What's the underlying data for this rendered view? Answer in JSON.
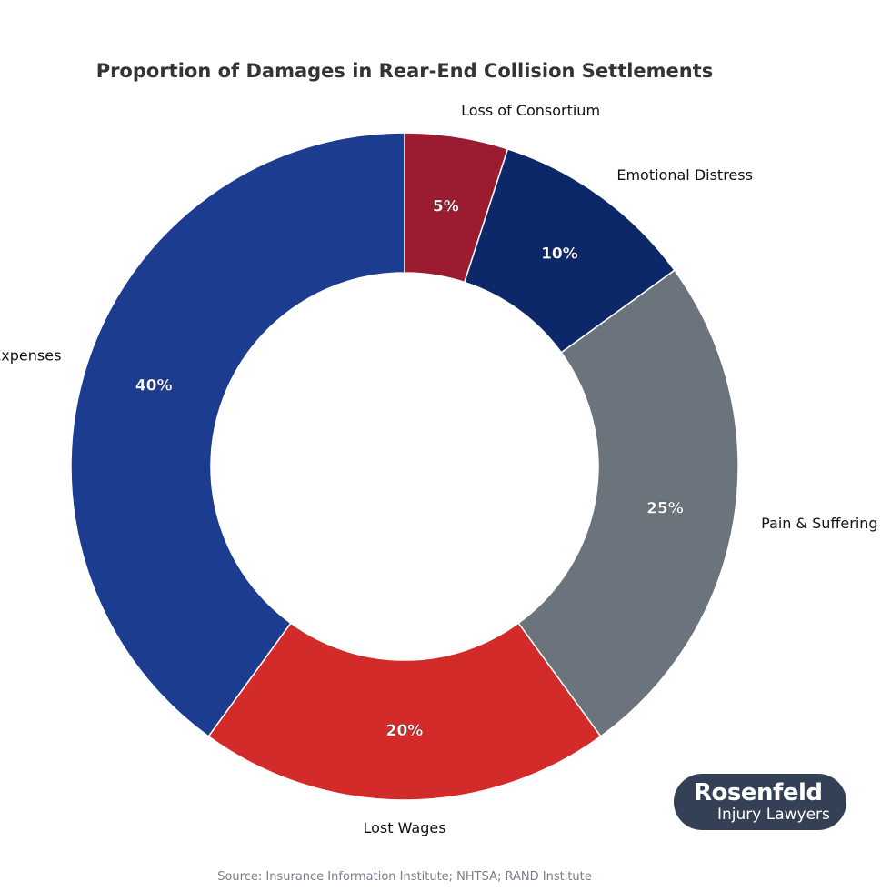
{
  "chart_data": {
    "type": "pie",
    "variant": "donut",
    "title": "Proportion of Damages in Rear-End Collision Settlements",
    "categories": [
      "Loss of Consortium",
      "Emotional Distress",
      "Pain & Suffering",
      "Lost Wages",
      "Medical Expenses"
    ],
    "values": [
      5,
      10,
      25,
      20,
      40
    ],
    "value_labels": [
      "5%",
      "10%",
      "25%",
      "20%",
      "40%"
    ],
    "colors": [
      "#9b1b30",
      "#0c2868",
      "#6b737d",
      "#d32a2a",
      "#1c3d8f"
    ],
    "start_angle": "top",
    "direction": "clockwise",
    "legend": "none"
  },
  "logo": {
    "name": "Rosenfeld",
    "subtitle": "Injury Lawyers"
  },
  "source": "Source: Insurance Information Institute; NHTSA; RAND Institute"
}
